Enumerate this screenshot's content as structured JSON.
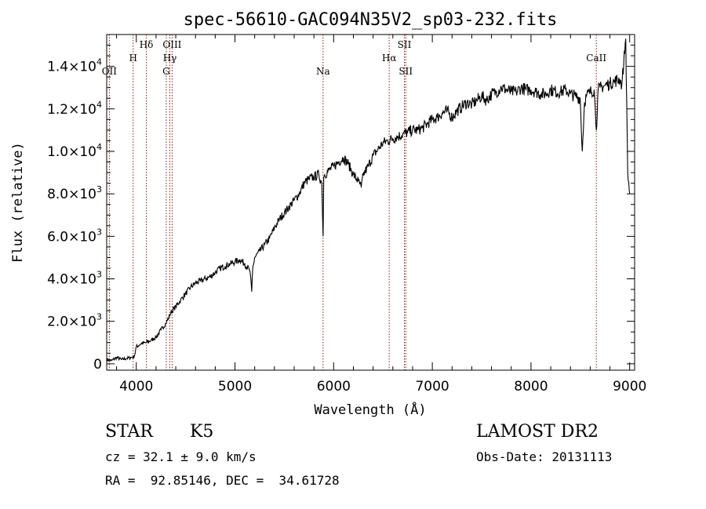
{
  "chart_data": {
    "type": "line",
    "title": "spec-56610-GAC094N35V2_sp03-232.fits",
    "xlabel": "Wavelength (Å)",
    "ylabel": "Flux (relative)",
    "xlim": [
      3700,
      9050
    ],
    "ylim": [
      -300,
      15500
    ],
    "x_ticks": [
      4000,
      5000,
      6000,
      7000,
      8000,
      9000
    ],
    "y_ticks": [
      {
        "value": 0,
        "mantissa": "0",
        "exp": ""
      },
      {
        "value": 2000,
        "mantissa": "2.0×10",
        "exp": "3"
      },
      {
        "value": 4000,
        "mantissa": "4.0×10",
        "exp": "3"
      },
      {
        "value": 6000,
        "mantissa": "6.0×10",
        "exp": "3"
      },
      {
        "value": 8000,
        "mantissa": "8.0×10",
        "exp": "3"
      },
      {
        "value": 10000,
        "mantissa": "1.0×10",
        "exp": "4"
      },
      {
        "value": 12000,
        "mantissa": "1.2×10",
        "exp": "4"
      },
      {
        "value": 14000,
        "mantissa": "1.4×10",
        "exp": "4"
      }
    ],
    "spectrum": {
      "x": [
        3700,
        3750,
        3800,
        3850,
        3900,
        3950,
        3980,
        4000,
        4050,
        4100,
        4150,
        4200,
        4250,
        4300,
        4330,
        4350,
        4400,
        4450,
        4500,
        4550,
        4600,
        4650,
        4700,
        4750,
        4800,
        4850,
        4900,
        4950,
        5000,
        5050,
        5100,
        5150,
        5170,
        5180,
        5200,
        5250,
        5300,
        5350,
        5400,
        5450,
        5500,
        5550,
        5600,
        5650,
        5700,
        5750,
        5800,
        5850,
        5880,
        5893,
        5900,
        5910,
        5950,
        6000,
        6050,
        6100,
        6150,
        6200,
        6250,
        6280,
        6300,
        6350,
        6400,
        6450,
        6500,
        6550,
        6600,
        6650,
        6700,
        6750,
        6800,
        6850,
        6900,
        6950,
        7000,
        7050,
        7100,
        7150,
        7200,
        7250,
        7300,
        7350,
        7400,
        7450,
        7500,
        7550,
        7600,
        7650,
        7700,
        7750,
        7800,
        7850,
        7900,
        7950,
        8000,
        8050,
        8100,
        8150,
        8200,
        8250,
        8300,
        8350,
        8400,
        8450,
        8498,
        8520,
        8542,
        8560,
        8600,
        8640,
        8662,
        8680,
        8700,
        8750,
        8800,
        8850,
        8900,
        8920,
        8940,
        8960,
        8980,
        9000
      ],
      "y": [
        200,
        150,
        300,
        200,
        250,
        300,
        350,
        800,
        950,
        1000,
        1100,
        1250,
        1600,
        1900,
        2200,
        2400,
        2700,
        3000,
        3300,
        3600,
        3800,
        3900,
        4000,
        4100,
        4300,
        4500,
        4600,
        4700,
        4800,
        4900,
        4700,
        4400,
        3400,
        4500,
        5000,
        5300,
        5600,
        5900,
        6400,
        6800,
        7100,
        7400,
        7700,
        8000,
        8500,
        8700,
        8800,
        8900,
        8500,
        6000,
        8800,
        8900,
        9100,
        9300,
        9500,
        9700,
        9400,
        8900,
        8600,
        8300,
        8900,
        9300,
        9800,
        10100,
        10400,
        10500,
        10600,
        10700,
        10800,
        10900,
        11000,
        11000,
        11100,
        11300,
        11500,
        11600,
        11800,
        11900,
        11600,
        11900,
        12100,
        12300,
        12200,
        12400,
        12600,
        12400,
        12700,
        12800,
        13000,
        12900,
        12800,
        12800,
        13000,
        12900,
        12900,
        12800,
        12700,
        12700,
        12900,
        12800,
        12800,
        12900,
        12700,
        12600,
        12500,
        10000,
        12300,
        12600,
        12800,
        12900,
        11000,
        12900,
        13000,
        13100,
        13200,
        13300,
        13400,
        13100,
        14200,
        15300,
        9000,
        8000
      ],
      "color": "#000000"
    },
    "spectral_lines": [
      {
        "name": "OII",
        "x": 3727,
        "row": 3
      },
      {
        "name": "H",
        "x": 3968,
        "row": 2
      },
      {
        "name": "Hδ",
        "x": 4102,
        "row": 1
      },
      {
        "name": "OIII",
        "x": 4363,
        "row": 1
      },
      {
        "name": "Hγ",
        "x": 4340,
        "row": 2
      },
      {
        "name": "G",
        "x": 4304,
        "row": 3
      },
      {
        "name": "Na",
        "x": 5893,
        "row": 3
      },
      {
        "name": "Hα",
        "x": 6563,
        "row": 2
      },
      {
        "name": "SII",
        "x": 6717,
        "row": 1
      },
      {
        "name": "SII",
        "x": 6731,
        "row": 3
      },
      {
        "name": "CaII",
        "x": 8662,
        "row": 2
      }
    ],
    "line_marker_color": "#8b1a1a",
    "legend": "none",
    "grid": false
  },
  "info": {
    "object_type": "STAR",
    "subclass": "K5",
    "cz": "cz = 32.1 ± 9.0 km/s",
    "coords": "RA =  92.85146, DEC =  34.61728",
    "survey": "LAMOST DR2",
    "obs_date": "Obs-Date: 20131113"
  }
}
